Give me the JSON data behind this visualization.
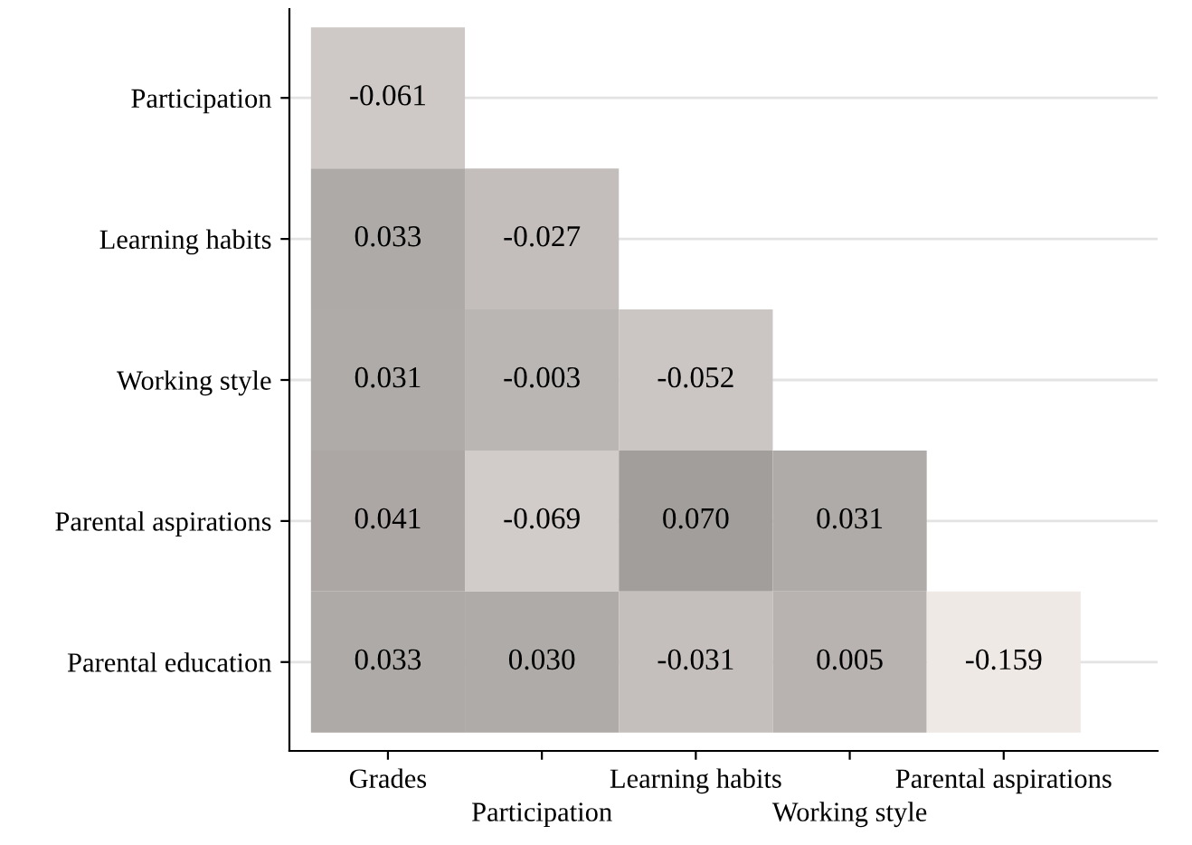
{
  "chart_data": {
    "type": "heatmap",
    "categories": [
      "Grades",
      "Participation",
      "Learning habits",
      "Working style",
      "Parental aspirations"
    ],
    "y_categories": [
      "Participation",
      "Learning habits",
      "Working style",
      "Parental aspirations",
      "Parental education"
    ],
    "cells": [
      [
        -0.061,
        null,
        null,
        null,
        null
      ],
      [
        0.033,
        -0.027,
        null,
        null,
        null
      ],
      [
        0.031,
        -0.003,
        -0.052,
        null,
        null
      ],
      [
        0.041,
        -0.069,
        0.07,
        0.031,
        null
      ],
      [
        0.033,
        0.03,
        -0.031,
        0.005,
        -0.159
      ]
    ],
    "cell_labels": [
      [
        "-0.061",
        null,
        null,
        null,
        null
      ],
      [
        "0.033",
        "-0.027",
        null,
        null,
        null
      ],
      [
        "0.031",
        "-0.003",
        "-0.052",
        null,
        null
      ],
      [
        "0.041",
        "-0.069",
        "0.070",
        "0.031",
        null
      ],
      [
        "0.033",
        "0.030",
        "-0.031",
        "0.005",
        "-0.159"
      ]
    ],
    "grid": "y"
  }
}
